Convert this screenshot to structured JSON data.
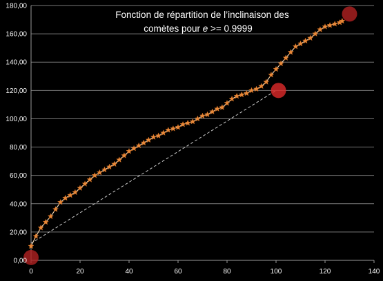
{
  "chart_data": {
    "type": "scatter",
    "title_line1": "Fonction de répartition de l’inclinaison des",
    "title_line2_prefix": "comètes pour ",
    "title_line2_var": "e",
    "title_line2_suffix": " >= 0.9999",
    "xlabel": "",
    "ylabel": "",
    "xlim": [
      0,
      140
    ],
    "ylim": [
      0,
      180
    ],
    "x_ticks": [
      0,
      20,
      40,
      60,
      80,
      100,
      120,
      140
    ],
    "x_tick_labels": [
      "0",
      "20",
      "40",
      "60",
      "80",
      "100",
      "120",
      "140"
    ],
    "y_ticks": [
      0,
      20,
      40,
      60,
      80,
      100,
      120,
      140,
      160,
      180
    ],
    "y_tick_labels": [
      "0,00",
      "20,00",
      "40,00",
      "60,00",
      "80,00",
      "100,00",
      "120,00",
      "140,00",
      "160,00",
      "180,00"
    ],
    "grid": true,
    "legend": "none",
    "series": [
      {
        "marker": "star",
        "color": "#e8893a",
        "x": [
          0,
          2,
          4,
          6,
          8,
          10,
          12,
          14,
          16,
          18,
          20,
          22,
          24,
          26,
          28,
          30,
          32,
          34,
          36,
          38,
          40,
          42,
          44,
          46,
          48,
          50,
          52,
          54,
          56,
          58,
          60,
          62,
          64,
          66,
          68,
          70,
          72,
          74,
          76,
          78,
          80,
          82,
          84,
          86,
          88,
          90,
          92,
          94,
          96,
          98,
          100,
          102,
          104,
          106,
          108,
          110,
          112,
          114,
          116,
          118,
          120,
          122,
          124,
          126,
          127
        ],
        "y": [
          10,
          17,
          23,
          27,
          31,
          36,
          41,
          44,
          46,
          48,
          51,
          54,
          57,
          60,
          62,
          64,
          66,
          68,
          71,
          74,
          77,
          79,
          81,
          83,
          85,
          87,
          88,
          90,
          92,
          93,
          94,
          96,
          97,
          98,
          100,
          102,
          103,
          105,
          107,
          108,
          111,
          114,
          116,
          117,
          118,
          120,
          121,
          123,
          126,
          131,
          135,
          139,
          143,
          147,
          151,
          153,
          155,
          157,
          160,
          163,
          165,
          166,
          167,
          168,
          169
        ]
      }
    ],
    "trendline": {
      "style": "dashed",
      "color": "#cccccc",
      "points": [
        [
          0,
          12
        ],
        [
          100,
          120
        ]
      ]
    },
    "highlights": [
      {
        "x": 0,
        "y": 2,
        "color": "#b22222"
      },
      {
        "x": 101,
        "y": 120,
        "color": "#e02a2a"
      },
      {
        "x": 130,
        "y": 174,
        "color": "#b22222"
      }
    ]
  }
}
